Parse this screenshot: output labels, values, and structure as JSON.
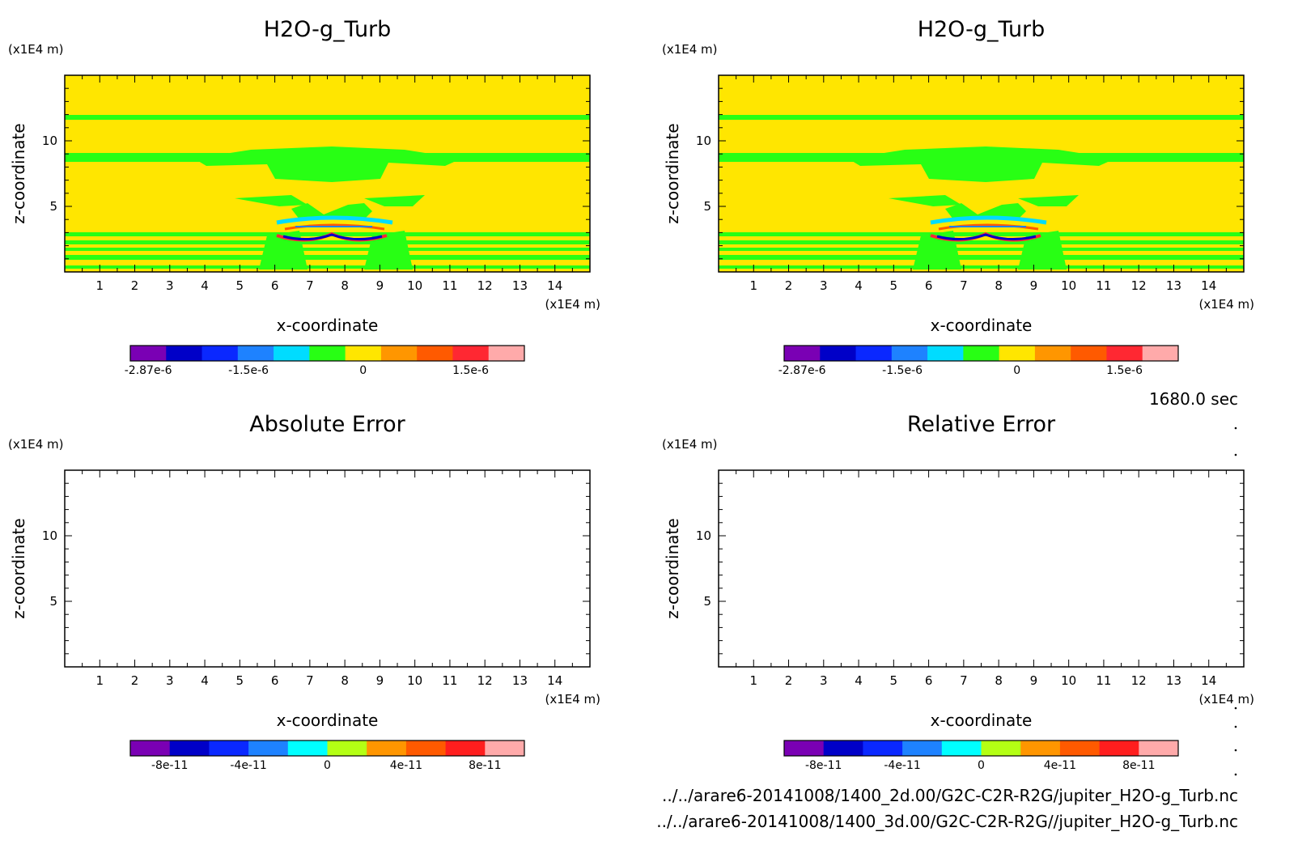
{
  "footer": {
    "time": "1680.0 sec",
    "file1": "../../arare6-20141008/1400_2d.00/G2C-C2R-R2G/jupiter_H2O-g_Turb.nc",
    "file2": "../../arare6-20141008/1400_3d.00/G2C-C2R-R2G//jupiter_H2O-g_Turb.nc"
  },
  "chart_data": [
    {
      "type": "heatmap",
      "title": "H2O-g_Turb",
      "xlabel": "x-coordinate",
      "ylabel": "z-coordinate",
      "x_unit": "(x1E4 m)",
      "y_unit": "(x1E4 m)",
      "xlim": [
        0,
        15
      ],
      "ylim": [
        0,
        15
      ],
      "xticks": [
        "1",
        "2",
        "3",
        "4",
        "5",
        "6",
        "7",
        "8",
        "9",
        "10",
        "11",
        "12",
        "13",
        "14"
      ],
      "yticks": [
        "5",
        "10"
      ],
      "colorbar": {
        "colors": [
          "#7a00b4",
          "#0000c8",
          "#0a28ff",
          "#1e82ff",
          "#00dcff",
          "#28ff14",
          "#ffe600",
          "#ff9600",
          "#ff5a00",
          "#ff2832",
          "#ffaaaa"
        ],
        "tick_labels": [
          "-2.87e-6",
          "-1.5e-6",
          "0",
          "1.5e-6"
        ]
      },
      "background_color": "#ffe600",
      "field": "H2O-g turbulent tendency, near-zero everywhere with layered structure; strongest negative/positive anomalies near x 6.5–9, z 2–4"
    },
    {
      "type": "heatmap",
      "title": "H2O-g_Turb",
      "xlabel": "x-coordinate",
      "ylabel": "z-coordinate",
      "x_unit": "(x1E4 m)",
      "y_unit": "(x1E4 m)",
      "xlim": [
        0,
        15
      ],
      "ylim": [
        0,
        15
      ],
      "xticks": [
        "1",
        "2",
        "3",
        "4",
        "5",
        "6",
        "7",
        "8",
        "9",
        "10",
        "11",
        "12",
        "13",
        "14"
      ],
      "yticks": [
        "5",
        "10"
      ],
      "colorbar": {
        "colors": [
          "#7a00b4",
          "#0000c8",
          "#0a28ff",
          "#1e82ff",
          "#00dcff",
          "#28ff14",
          "#ffe600",
          "#ff9600",
          "#ff5a00",
          "#ff2832",
          "#ffaaaa"
        ],
        "tick_labels": [
          "-2.87e-6",
          "-1.5e-6",
          "0",
          "1.5e-6"
        ]
      },
      "background_color": "#ffe600"
    },
    {
      "type": "heatmap",
      "title": "Absolute Error",
      "xlabel": "x-coordinate",
      "ylabel": "z-coordinate",
      "x_unit": "(x1E4 m)",
      "y_unit": "(x1E4 m)",
      "xlim": [
        0,
        15
      ],
      "ylim": [
        0,
        15
      ],
      "xticks": [
        "1",
        "2",
        "3",
        "4",
        "5",
        "6",
        "7",
        "8",
        "9",
        "10",
        "11",
        "12",
        "13",
        "14"
      ],
      "yticks": [
        "5",
        "10"
      ],
      "colorbar": {
        "colors": [
          "#7a00b4",
          "#0000c8",
          "#0a28ff",
          "#1e82ff",
          "#00ffff",
          "#b4ff14",
          "#ff9600",
          "#ff5a00",
          "#ff1e1e",
          "#ffaaaa"
        ],
        "tick_labels": [
          "-8e-11",
          "-4e-11",
          "0",
          "4e-11",
          "8e-11"
        ]
      },
      "background_color": "#ffffff"
    },
    {
      "type": "heatmap",
      "title": "Relative Error",
      "xlabel": "x-coordinate",
      "ylabel": "z-coordinate",
      "x_unit": "(x1E4 m)",
      "y_unit": "(x1E4 m)",
      "xlim": [
        0,
        15
      ],
      "ylim": [
        0,
        15
      ],
      "xticks": [
        "1",
        "2",
        "3",
        "4",
        "5",
        "6",
        "7",
        "8",
        "9",
        "10",
        "11",
        "12",
        "13",
        "14"
      ],
      "yticks": [
        "5",
        "10"
      ],
      "colorbar": {
        "colors": [
          "#7a00b4",
          "#0000c8",
          "#0a28ff",
          "#1e82ff",
          "#00ffff",
          "#b4ff14",
          "#ff9600",
          "#ff5a00",
          "#ff1e1e",
          "#ffaaaa"
        ],
        "tick_labels": [
          "-8e-11",
          "-4e-11",
          "0",
          "4e-11",
          "8e-11"
        ]
      },
      "background_color": "#ffffff"
    }
  ]
}
